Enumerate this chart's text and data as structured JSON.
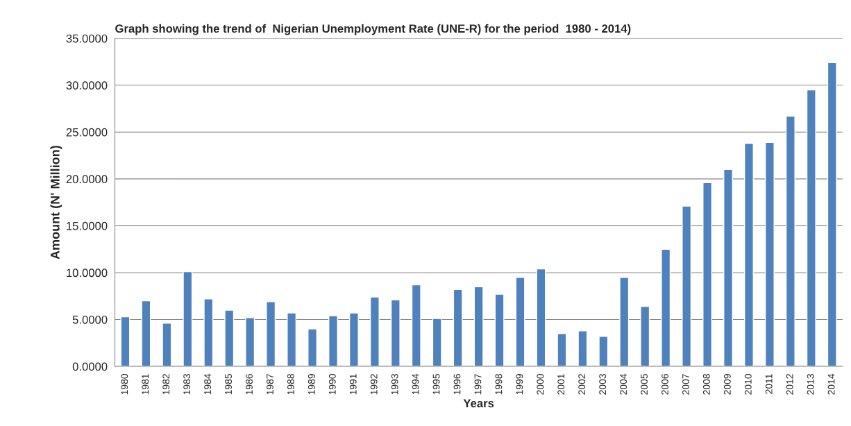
{
  "chart_data": {
    "type": "bar",
    "title": "Graph showing the trend of  Nigerian Unemployment Rate (UNE-R) for the period  1980 - 2014)",
    "xlabel": "Years",
    "ylabel": "Amount (N' Million)",
    "categories": [
      "1980",
      "1981",
      "1982",
      "1983",
      "1984",
      "1985",
      "1986",
      "1987",
      "1988",
      "1989",
      "1990",
      "1991",
      "1992",
      "1993",
      "1994",
      "1995",
      "1996",
      "1997",
      "1998",
      "1999",
      "2000",
      "2001",
      "2002",
      "2003",
      "2004",
      "2005",
      "2006",
      "2007",
      "2008",
      "2009",
      "2010",
      "2011",
      "2012",
      "2013",
      "2014"
    ],
    "values": [
      5.3,
      7.0,
      4.6,
      10.1,
      7.2,
      6.0,
      5.2,
      6.9,
      5.7,
      4.0,
      5.4,
      5.7,
      7.4,
      7.1,
      8.7,
      5.1,
      8.2,
      8.5,
      7.7,
      9.5,
      10.4,
      3.5,
      3.8,
      3.2,
      9.5,
      6.4,
      12.5,
      17.1,
      19.6,
      21.0,
      23.8,
      23.9,
      26.7,
      29.5,
      32.4
    ],
    "color": "#4f81bd",
    "ylim": [
      0,
      35
    ],
    "yticks": [
      {
        "value": 0,
        "label": "0.0000"
      },
      {
        "value": 5,
        "label": "5.0000"
      },
      {
        "value": 10,
        "label": "10.0000"
      },
      {
        "value": 15,
        "label": "15.0000"
      },
      {
        "value": 20,
        "label": "20.0000"
      },
      {
        "value": 25,
        "label": "25.0000"
      },
      {
        "value": 30,
        "label": "30.0000"
      },
      {
        "value": 35,
        "label": "35.0000"
      }
    ],
    "grid": "y"
  }
}
